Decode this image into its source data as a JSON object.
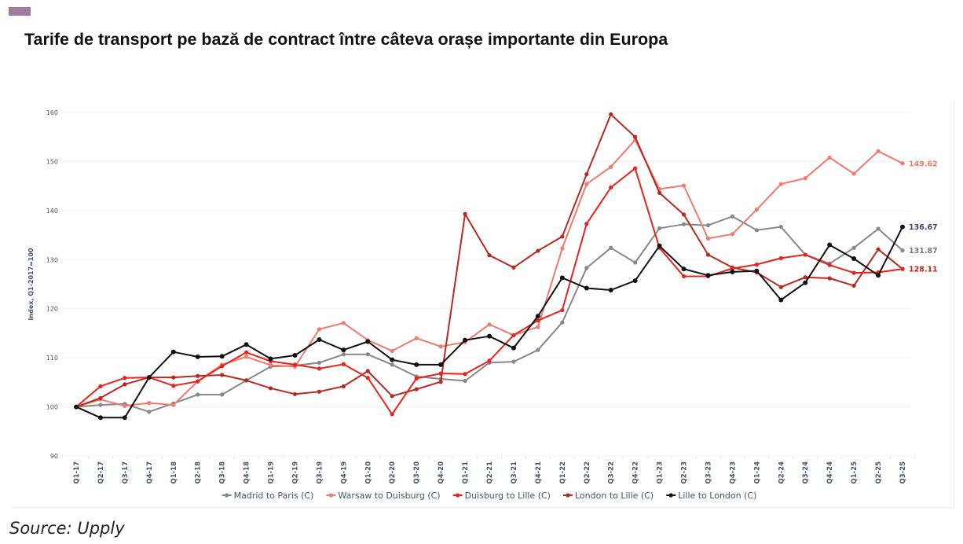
{
  "header": {
    "accent_color": "#a07c9c",
    "title": "Tarife de transport pe bază de contract între câteva orașe importante din Europa"
  },
  "source": "Source: Upply",
  "chart_data": {
    "type": "line",
    "title": "Tarife de transport pe bază de contract între câteva orașe importante din Europa",
    "xlabel": "",
    "ylabel": "Index, Q1-2017=100",
    "ylim": [
      90,
      160
    ],
    "yticks": [
      90,
      100,
      110,
      120,
      130,
      140,
      150,
      160
    ],
    "grid": true,
    "legend_position": "bottom",
    "categories": [
      "Q1-17",
      "Q2-17",
      "Q3-17",
      "Q4-17",
      "Q1-18",
      "Q2-18",
      "Q3-18",
      "Q4-18",
      "Q1-19",
      "Q2-19",
      "Q3-19",
      "Q4-19",
      "Q1-20",
      "Q2-20",
      "Q3-20",
      "Q4-20",
      "Q1-21",
      "Q2-21",
      "Q3-21",
      "Q4-21",
      "Q1-22",
      "Q2-22",
      "Q3-22",
      "Q4-22",
      "Q1-23",
      "Q2-23",
      "Q3-23",
      "Q4-23",
      "Q1-24",
      "Q2-24",
      "Q3-24",
      "Q4-24",
      "Q1-25",
      "Q2-25",
      "Q3-25"
    ],
    "series": [
      {
        "name": "Madrid to Paris (C)",
        "color": "#888888",
        "end_label": "131.87",
        "end_label_color": "#7a7a7a",
        "values": [
          100,
          100.4,
          100.6,
          99.0,
          100.7,
          102.5,
          102.5,
          105.4,
          108.2,
          108.4,
          109.0,
          110.7,
          110.7,
          108.6,
          106.2,
          105.7,
          105.3,
          109.0,
          109.2,
          111.6,
          117.2,
          128.3,
          132.4,
          129.4,
          136.4,
          137.2,
          137.0,
          138.8,
          136.0,
          136.7,
          131.0,
          129.2,
          132.4,
          136.3,
          131.87
        ]
      },
      {
        "name": "Warsaw to Duisburg (C)",
        "color": "#f07a6e",
        "end_label": "149.62",
        "end_label_color": "#f07a6e",
        "values": [
          100,
          101.5,
          100.2,
          100.8,
          100.4,
          105.2,
          108.6,
          110.2,
          108.5,
          108.2,
          115.8,
          117.1,
          113.6,
          111.4,
          114.0,
          112.3,
          113.2,
          116.8,
          114.6,
          116.3,
          132.3,
          145.4,
          148.9,
          154.4,
          144.4,
          145.1,
          134.3,
          135.2,
          140.2,
          145.4,
          146.6,
          150.8,
          147.5,
          152.1,
          149.62
        ]
      },
      {
        "name": "Duisburg to Lille (C)",
        "color": "#e8231c",
        "end_label": "",
        "end_label_color": "#e8231c",
        "values": [
          100,
          104.2,
          105.9,
          106.0,
          104.3,
          105.2,
          108.3,
          111.1,
          109.3,
          108.6,
          107.8,
          108.7,
          105.9,
          98.5,
          105.8,
          106.8,
          106.7,
          109.4,
          114.6,
          117.6,
          119.7,
          137.3,
          144.7,
          148.6,
          132.4,
          126.6,
          126.6,
          128.2,
          129.0,
          130.3,
          131.0,
          128.9,
          127.3,
          127.4,
          128.1
        ]
      },
      {
        "name": "London to Lille (C)",
        "color": "#b52a22",
        "end_label": "128.11",
        "end_label_color": "#b52a22",
        "values": [
          100,
          101.8,
          104.6,
          106.0,
          106.0,
          106.3,
          106.5,
          105.4,
          103.8,
          102.6,
          103.1,
          104.2,
          107.3,
          102.2,
          103.6,
          105.1,
          139.3,
          130.9,
          128.4,
          131.8,
          134.7,
          147.4,
          159.6,
          155.0,
          143.6,
          139.2,
          131.0,
          128.4,
          127.4,
          124.4,
          126.4,
          126.2,
          124.7,
          132.1,
          128.11
        ]
      },
      {
        "name": "Lille to London (C)",
        "color": "#111111",
        "end_label": "136.67",
        "end_label_color": "#3b4a6b",
        "values": [
          100,
          97.8,
          97.8,
          106.0,
          111.2,
          110.2,
          110.3,
          112.7,
          109.8,
          110.5,
          113.7,
          111.6,
          113.3,
          109.6,
          108.6,
          108.6,
          113.6,
          114.4,
          112.0,
          118.5,
          126.3,
          124.2,
          123.8,
          125.7,
          132.8,
          128.1,
          126.8,
          127.5,
          127.7,
          121.8,
          125.3,
          133.0,
          130.2,
          126.8,
          136.67
        ]
      }
    ]
  }
}
